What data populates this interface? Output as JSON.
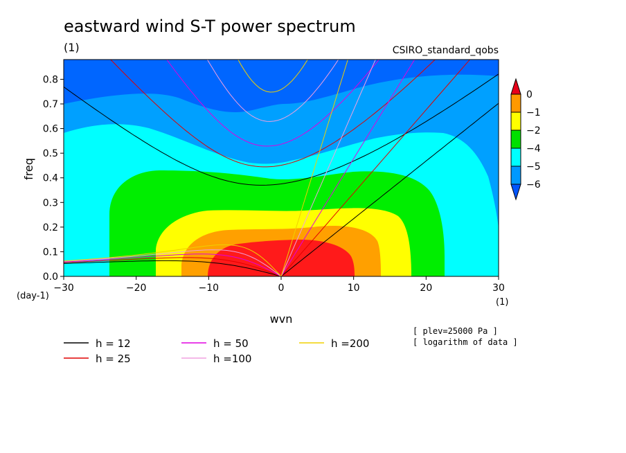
{
  "chart_data": {
    "type": "heatmap",
    "title": "eastward wind S-T power spectrum",
    "title_units": "(1)",
    "dataset": "CSIRO_standard_qobs",
    "xlabel": "wvn",
    "ylabel": "freq",
    "x_units": "(1)",
    "y_units": "(day-1)",
    "xlim": [
      -30,
      30
    ],
    "ylim": [
      0,
      0.88
    ],
    "x_ticks": [
      -30,
      -20,
      -10,
      0,
      10,
      20,
      30
    ],
    "x_tick_labels": [
      "−30",
      "−20",
      "−10",
      "0",
      "10",
      "20",
      "30"
    ],
    "y_ticks": [
      0,
      0.1,
      0.2,
      0.3,
      0.4,
      0.5,
      0.6,
      0.7,
      0.8
    ],
    "y_tick_labels": [
      "0.0",
      "0.1",
      "0.2",
      "0.3",
      "0.4",
      "0.5",
      "0.6",
      "0.7",
      "0.8"
    ],
    "colorbar": {
      "labels": [
        "0",
        "−1",
        "−2",
        "−4",
        "−5",
        "−6"
      ],
      "colors": [
        "#e8001a",
        "#ff9900",
        "#ffff00",
        "#00e000",
        "#00ffff",
        "#0099ff",
        "#0055ff"
      ]
    },
    "field_colors": {
      "red": "#ff1a1a",
      "orange": "#ffa000",
      "yellow": "#ffff00",
      "green": "#00ee00",
      "cyan": "#00ffff",
      "light_blue": "#00a0ff",
      "blue": "#0066ff"
    },
    "dispersion_curves": [
      {
        "name": "h = 12",
        "h": 12,
        "color": "#000000"
      },
      {
        "name": "h = 25",
        "h": 25,
        "color": "#e00000"
      },
      {
        "name": "h = 50",
        "h": 50,
        "color": "#e000e0"
      },
      {
        "name": "h =100",
        "h": 100,
        "color": "#f0a0e0"
      },
      {
        "name": "h =200",
        "h": 200,
        "color": "#f0d000"
      }
    ],
    "notes": [
      "[ plev=25000 Pa ]",
      "[ logarithm of data ]"
    ]
  }
}
